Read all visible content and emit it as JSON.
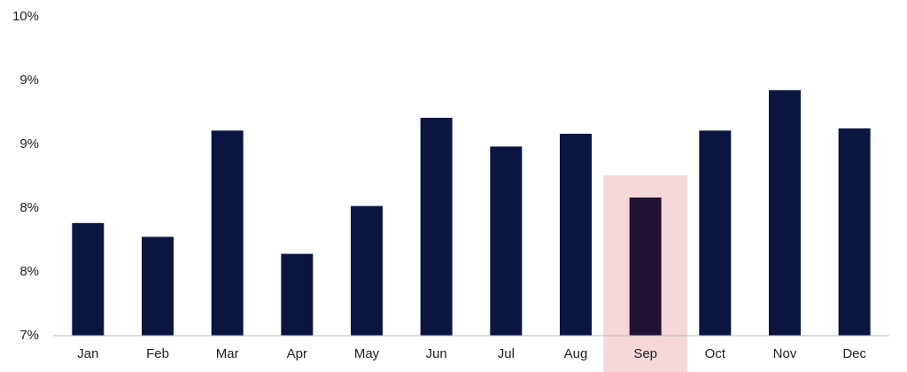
{
  "chart_data": {
    "type": "bar",
    "categories": [
      "Jan",
      "Feb",
      "Mar",
      "Apr",
      "May",
      "Jun",
      "Jul",
      "Aug",
      "Sep",
      "Oct",
      "Nov",
      "Dec"
    ],
    "values": [
      8.06,
      7.93,
      8.93,
      7.77,
      8.22,
      9.05,
      8.78,
      8.9,
      8.3,
      8.93,
      9.31,
      8.95
    ],
    "color": "#0b1640",
    "highlight": "Sep",
    "highlight_color": "#f5d9da",
    "highlight_bar_color": "#231333",
    "ylim": [
      7,
      10
    ],
    "yticks": [
      {
        "value": 7,
        "label": "7%"
      },
      {
        "value": 7.6,
        "label": "8%"
      },
      {
        "value": 8.2,
        "label": "8%"
      },
      {
        "value": 8.8,
        "label": "9%"
      },
      {
        "value": 9.4,
        "label": "9%"
      },
      {
        "value": 10,
        "label": "10%"
      }
    ],
    "grid": false
  }
}
